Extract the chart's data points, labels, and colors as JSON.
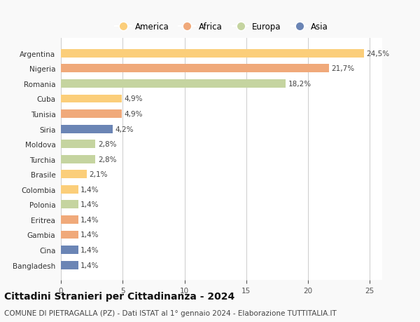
{
  "countries": [
    "Argentina",
    "Nigeria",
    "Romania",
    "Cuba",
    "Tunisia",
    "Siria",
    "Moldova",
    "Turchia",
    "Brasile",
    "Colombia",
    "Polonia",
    "Eritrea",
    "Gambia",
    "Cina",
    "Bangladesh"
  ],
  "values": [
    24.5,
    21.7,
    18.2,
    4.9,
    4.9,
    4.2,
    2.8,
    2.8,
    2.1,
    1.4,
    1.4,
    1.4,
    1.4,
    1.4,
    1.4
  ],
  "labels": [
    "24,5%",
    "21,7%",
    "18,2%",
    "4,9%",
    "4,9%",
    "4,2%",
    "2,8%",
    "2,8%",
    "2,1%",
    "1,4%",
    "1,4%",
    "1,4%",
    "1,4%",
    "1,4%",
    "1,4%"
  ],
  "colors": [
    "#FBCE7A",
    "#F0A97A",
    "#C5D4A0",
    "#FBCE7A",
    "#F0A97A",
    "#6B85B5",
    "#C5D4A0",
    "#C5D4A0",
    "#FBCE7A",
    "#FBCE7A",
    "#C5D4A0",
    "#F0A97A",
    "#F0A97A",
    "#6B85B5",
    "#6B85B5"
  ],
  "legend_labels": [
    "America",
    "Africa",
    "Europa",
    "Asia"
  ],
  "legend_colors": [
    "#FBCE7A",
    "#F0A97A",
    "#C5D4A0",
    "#6B85B5"
  ],
  "xlim": [
    0,
    26
  ],
  "xticks": [
    0,
    5,
    10,
    15,
    20,
    25
  ],
  "title": "Cittadini Stranieri per Cittadinanza - 2024",
  "subtitle": "COMUNE DI PIETRAGALLA (PZ) - Dati ISTAT al 1° gennaio 2024 - Elaborazione TUTTITALIA.IT",
  "background_color": "#f9f9f9",
  "bar_background": "#ffffff",
  "title_fontsize": 10,
  "subtitle_fontsize": 7.5
}
